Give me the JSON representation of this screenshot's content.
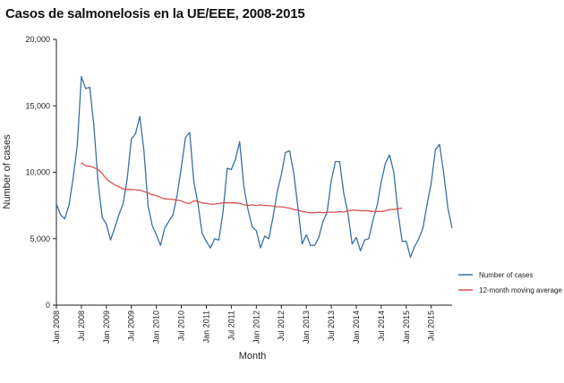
{
  "chart_data": {
    "type": "line",
    "title": "Casos de salmonelosis en la UE/EEE, 2008-2015",
    "xlabel": "Month",
    "ylabel": "Number of cases",
    "ylim": [
      0,
      20000
    ],
    "y_ticks": [
      0,
      5000,
      10000,
      15000,
      20000
    ],
    "y_tick_labels": [
      "0",
      "5,000",
      "10,000",
      "15,000",
      "20,000"
    ],
    "x_ticks": [
      {
        "month_index": 0,
        "label": "Jan 2008"
      },
      {
        "month_index": 6,
        "label": "Jul 2008"
      },
      {
        "month_index": 12,
        "label": "Jan 2009"
      },
      {
        "month_index": 18,
        "label": "Jul 2009"
      },
      {
        "month_index": 24,
        "label": "Jan 2010"
      },
      {
        "month_index": 30,
        "label": "Jul 2010"
      },
      {
        "month_index": 36,
        "label": "Jan 2011"
      },
      {
        "month_index": 42,
        "label": "Jul 2011"
      },
      {
        "month_index": 48,
        "label": "Jan 2012"
      },
      {
        "month_index": 54,
        "label": "Jul 2012"
      },
      {
        "month_index": 60,
        "label": "Jan 2013"
      },
      {
        "month_index": 66,
        "label": "Jul 2013"
      },
      {
        "month_index": 72,
        "label": "Jan 2014"
      },
      {
        "month_index": 78,
        "label": "Jul 2014"
      },
      {
        "month_index": 84,
        "label": "Jan 2015"
      },
      {
        "month_index": 90,
        "label": "Jul 2015"
      }
    ],
    "x_range_months": [
      0,
      95
    ],
    "series": [
      {
        "name": "Number of cases",
        "color": "#3a6fa5",
        "start_month_index": 0,
        "values": [
          7600,
          6800,
          6500,
          7500,
          9500,
          12000,
          17200,
          16300,
          16400,
          13500,
          9300,
          6600,
          6100,
          4900,
          5800,
          6800,
          7600,
          9500,
          12500,
          12900,
          14200,
          11700,
          7500,
          6000,
          5300,
          4500,
          5800,
          6300,
          6800,
          8300,
          10400,
          12600,
          13000,
          9300,
          7600,
          5400,
          4800,
          4300,
          5000,
          4900,
          7000,
          10300,
          10200,
          11000,
          12300,
          8900,
          7200,
          5900,
          5600,
          4300,
          5200,
          5000,
          6600,
          8500,
          9800,
          11500,
          11600,
          9900,
          7300,
          4600,
          5300,
          4500,
          4500,
          5100,
          6300,
          7000,
          9400,
          10800,
          10800,
          8400,
          6900,
          4600,
          5100,
          4100,
          4900,
          5000,
          6400,
          7500,
          9300,
          10700,
          11300,
          10000,
          7000,
          4800,
          4800,
          3600,
          4400,
          5000,
          5800,
          7600,
          9200,
          11700,
          12100,
          9900,
          7300,
          5800
        ]
      },
      {
        "name": "12-month moving average",
        "color": "#d9534f",
        "start_month_index": 6,
        "values": [
          10700,
          10500,
          10450,
          10350,
          10200,
          9900,
          9500,
          9250,
          9050,
          8900,
          8750,
          8700,
          8700,
          8680,
          8650,
          8550,
          8450,
          8300,
          8250,
          8100,
          8000,
          7980,
          7950,
          7900,
          7850,
          7700,
          7650,
          7850,
          7800,
          7700,
          7650,
          7600,
          7600,
          7650,
          7700,
          7700,
          7700,
          7700,
          7650,
          7550,
          7500,
          7550,
          7500,
          7550,
          7500,
          7500,
          7450,
          7400,
          7400,
          7350,
          7300,
          7200,
          7150,
          7050,
          7000,
          6950,
          6950,
          7000,
          6950,
          7000,
          7000,
          7000,
          7050,
          7000,
          7100,
          7150,
          7150,
          7100,
          7100,
          7100,
          7050,
          7050,
          7050,
          7100,
          7200,
          7200,
          7250,
          7300
        ]
      }
    ],
    "legend": {
      "placement": "right",
      "entries": [
        "Number of cases",
        "12-month moving average"
      ]
    }
  }
}
